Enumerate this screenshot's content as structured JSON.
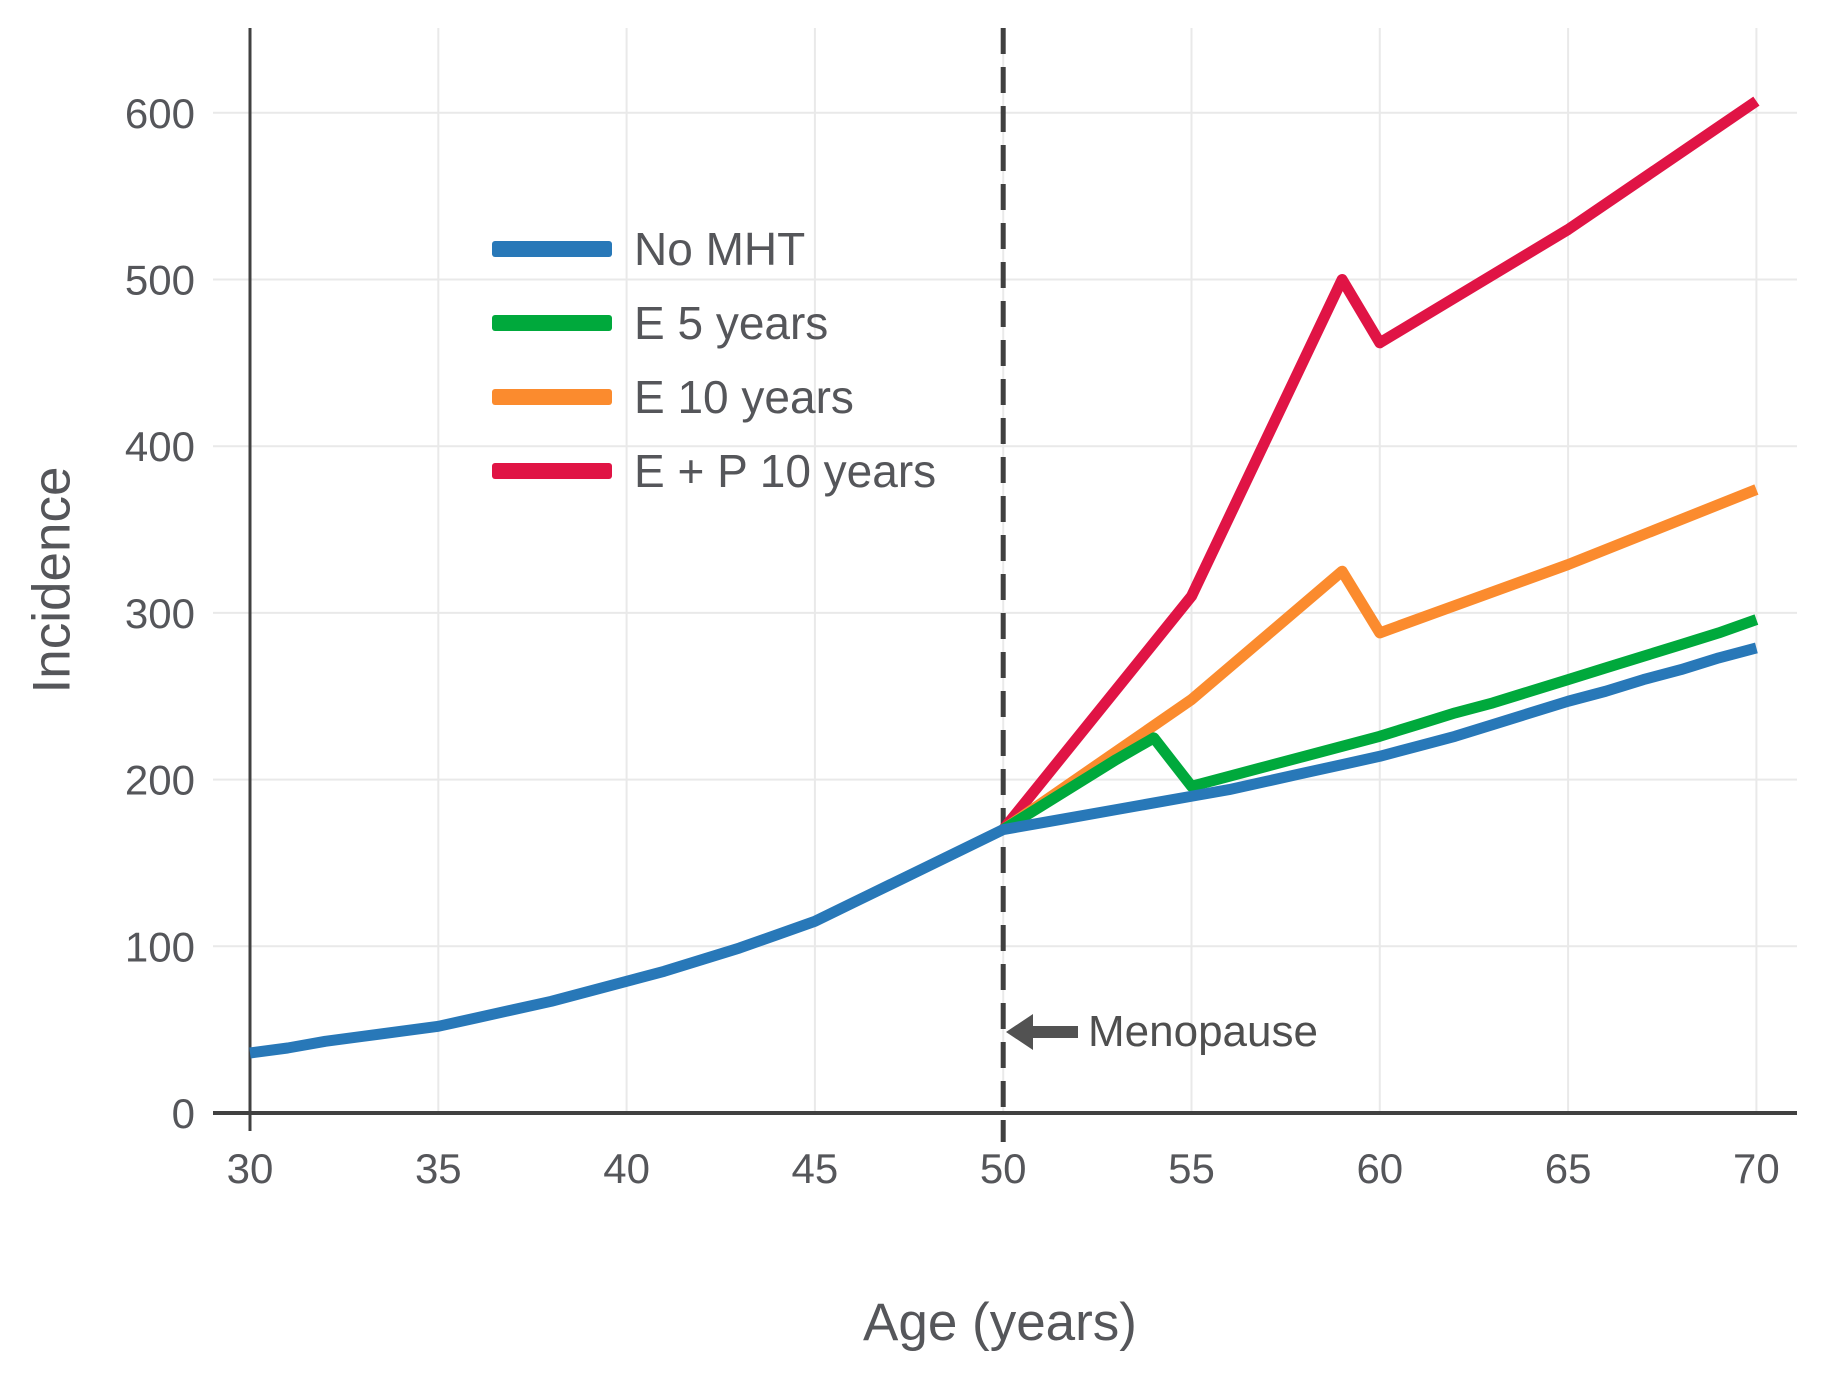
{
  "figure": {
    "x_axis_title": "Age (years)",
    "y_axis_title": "Incidence",
    "annotation_label": "Menopause",
    "colors": {
      "axis": "#414141",
      "grid": "#e9e9e9",
      "tick_text": "#55565a",
      "annotation": "#525252",
      "no_mht": "#2878b8",
      "e5": "#00a93c",
      "e10": "#fb8b2e",
      "ep10": "#e01445"
    }
  },
  "chart_data": {
    "type": "line",
    "title": "",
    "xlabel": "Age (years)",
    "ylabel": "Incidence",
    "xlim": [
      30,
      71
    ],
    "ylim": [
      0,
      650
    ],
    "x_ticks": [
      30,
      35,
      40,
      45,
      50,
      55,
      60,
      65,
      70
    ],
    "y_ticks": [
      0,
      100,
      200,
      300,
      400,
      500,
      600
    ],
    "grid": true,
    "legend_position": "upper-left-inside",
    "annotations": [
      {
        "type": "vline",
        "x": 50,
        "style": "dashed",
        "label": "Menopause",
        "label_y": 50
      }
    ],
    "series": [
      {
        "name": "No MHT",
        "color": "#2878b8",
        "x": [
          30,
          31,
          32,
          33,
          34,
          35,
          36,
          37,
          38,
          39,
          40,
          41,
          42,
          43,
          44,
          45,
          46,
          47,
          48,
          49,
          50,
          51,
          52,
          53,
          54,
          55,
          56,
          57,
          58,
          59,
          60,
          61,
          62,
          63,
          64,
          65,
          66,
          67,
          68,
          69,
          70
        ],
        "y": [
          36,
          39,
          43,
          46,
          49,
          52,
          57,
          62,
          67,
          73,
          79,
          85,
          92,
          99,
          107,
          115,
          126,
          137,
          148,
          159,
          170,
          174,
          178,
          182,
          186,
          190,
          194,
          199,
          204,
          209,
          214,
          220,
          226,
          233,
          240,
          247,
          253,
          260,
          266,
          273,
          279
        ]
      },
      {
        "name": "E 5 years",
        "color": "#00a93c",
        "x": [
          50,
          51,
          52,
          53,
          54,
          55,
          56,
          57,
          58,
          59,
          60,
          61,
          62,
          63,
          64,
          65,
          66,
          67,
          68,
          69,
          70
        ],
        "y": [
          170,
          184,
          198,
          212,
          225,
          196,
          202,
          208,
          214,
          220,
          226,
          233,
          240,
          246,
          253,
          260,
          267,
          274,
          281,
          288,
          296
        ]
      },
      {
        "name": "E 10 years",
        "color": "#fb8b2e",
        "x": [
          50,
          55,
          59,
          60,
          65,
          70
        ],
        "y": [
          170,
          248,
          325,
          288,
          329,
          374
        ]
      },
      {
        "name": "E + P 10 years",
        "color": "#e01445",
        "x": [
          50,
          55,
          59,
          60,
          65,
          70
        ],
        "y": [
          170,
          310,
          500,
          462,
          530,
          607
        ]
      }
    ]
  }
}
